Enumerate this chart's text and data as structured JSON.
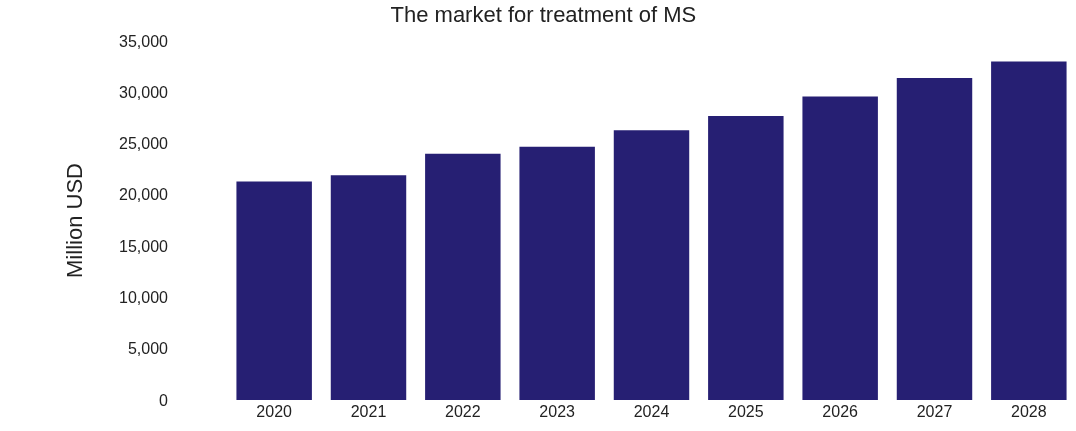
{
  "chart_data": {
    "type": "bar",
    "title": "The market for treatment of MS",
    "ylabel": "Million USD",
    "categories": [
      "2020",
      "2021",
      "2022",
      "2023",
      "2024",
      "2025",
      "2026",
      "2027",
      "2028"
    ],
    "values": [
      21300,
      21900,
      24000,
      24700,
      26300,
      27700,
      29600,
      31400,
      33000
    ],
    "color": "#261f73",
    "ylim": [
      0,
      35000
    ],
    "yticks": [
      {
        "value": 0,
        "label": "0"
      },
      {
        "value": 5000,
        "label": "5,000"
      },
      {
        "value": 10000,
        "label": "10,000"
      },
      {
        "value": 15000,
        "label": "15,000"
      },
      {
        "value": 20000,
        "label": "20,000"
      },
      {
        "value": 25000,
        "label": "25,000"
      },
      {
        "value": 30000,
        "label": "30,000"
      },
      {
        "value": 35000,
        "label": "35,000"
      }
    ],
    "tick_labels": "xy"
  }
}
